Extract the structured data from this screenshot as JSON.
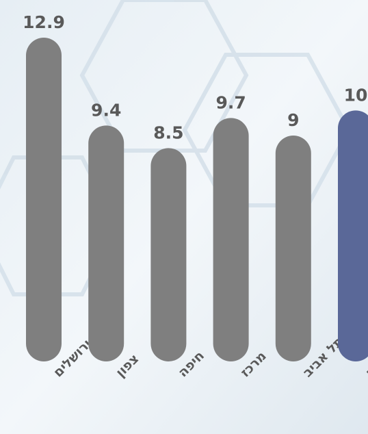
{
  "chart_data": {
    "type": "bar",
    "categories": [
      "ירושלים",
      "צפון",
      "חיפה",
      "מרכז",
      "תל אביב",
      "אשקלון"
    ],
    "values": [
      12.9,
      9.4,
      8.5,
      9.7,
      9,
      10
    ],
    "colors": [
      "#7f7f7f",
      "#7f7f7f",
      "#7f7f7f",
      "#7f7f7f",
      "#7f7f7f",
      "#5a6898"
    ]
  }
}
